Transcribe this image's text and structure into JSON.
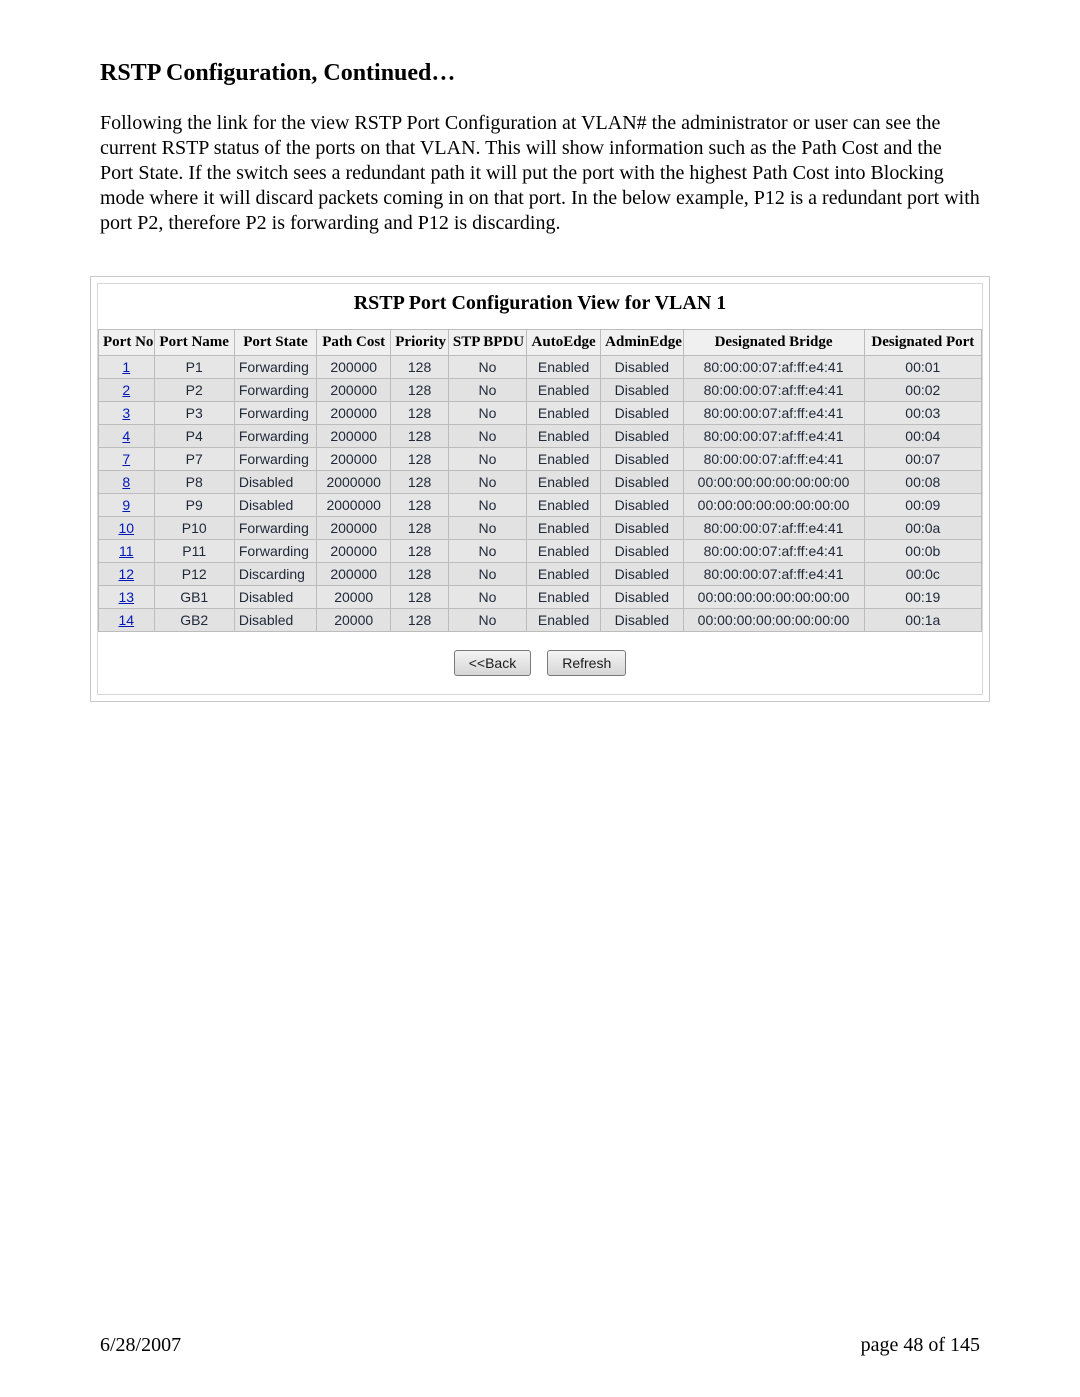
{
  "heading": "RSTP Configuration, Continued…",
  "paragraph": "Following the link for the view RSTP Port Configuration at VLAN# the administrator or user can see the current RSTP status of the ports on that VLAN.  This will show information such as the Path Cost and the Port State.  If the switch sees a redundant path it will put the port with the highest Path Cost into Blocking mode where it will discard packets coming in on that port. In the below example, P12 is a redundant port with port P2, therefore P2 is forwarding and P12 is discarding.",
  "table": {
    "caption": "RSTP Port Configuration View for VLAN 1",
    "columns": [
      "Port No",
      "Port Name",
      "Port State",
      "Path Cost",
      "Priority",
      "STP BPDU",
      "AutoEdge",
      "AdminEdge",
      "Designated Bridge",
      "Designated Port"
    ],
    "rows": [
      {
        "no": "1",
        "name": "P1",
        "state": "Forwarding",
        "cost": "200000",
        "prio": "128",
        "bpdu": "No",
        "auto": "Enabled",
        "admin": "Disabled",
        "bridge": "80:00:00:07:af:ff:e4:41",
        "dport": "00:01"
      },
      {
        "no": "2",
        "name": "P2",
        "state": "Forwarding",
        "cost": "200000",
        "prio": "128",
        "bpdu": "No",
        "auto": "Enabled",
        "admin": "Disabled",
        "bridge": "80:00:00:07:af:ff:e4:41",
        "dport": "00:02"
      },
      {
        "no": "3",
        "name": "P3",
        "state": "Forwarding",
        "cost": "200000",
        "prio": "128",
        "bpdu": "No",
        "auto": "Enabled",
        "admin": "Disabled",
        "bridge": "80:00:00:07:af:ff:e4:41",
        "dport": "00:03"
      },
      {
        "no": "4",
        "name": "P4",
        "state": "Forwarding",
        "cost": "200000",
        "prio": "128",
        "bpdu": "No",
        "auto": "Enabled",
        "admin": "Disabled",
        "bridge": "80:00:00:07:af:ff:e4:41",
        "dport": "00:04"
      },
      {
        "no": "7",
        "name": "P7",
        "state": "Forwarding",
        "cost": "200000",
        "prio": "128",
        "bpdu": "No",
        "auto": "Enabled",
        "admin": "Disabled",
        "bridge": "80:00:00:07:af:ff:e4:41",
        "dport": "00:07"
      },
      {
        "no": "8",
        "name": "P8",
        "state": "Disabled",
        "cost": "2000000",
        "prio": "128",
        "bpdu": "No",
        "auto": "Enabled",
        "admin": "Disabled",
        "bridge": "00:00:00:00:00:00:00:00",
        "dport": "00:08"
      },
      {
        "no": "9",
        "name": "P9",
        "state": "Disabled",
        "cost": "2000000",
        "prio": "128",
        "bpdu": "No",
        "auto": "Enabled",
        "admin": "Disabled",
        "bridge": "00:00:00:00:00:00:00:00",
        "dport": "00:09"
      },
      {
        "no": "10",
        "name": "P10",
        "state": "Forwarding",
        "cost": "200000",
        "prio": "128",
        "bpdu": "No",
        "auto": "Enabled",
        "admin": "Disabled",
        "bridge": "80:00:00:07:af:ff:e4:41",
        "dport": "00:0a"
      },
      {
        "no": "11",
        "name": "P11",
        "state": "Forwarding",
        "cost": "200000",
        "prio": "128",
        "bpdu": "No",
        "auto": "Enabled",
        "admin": "Disabled",
        "bridge": "80:00:00:07:af:ff:e4:41",
        "dport": "00:0b"
      },
      {
        "no": "12",
        "name": "P12",
        "state": "Discarding",
        "cost": "200000",
        "prio": "128",
        "bpdu": "No",
        "auto": "Enabled",
        "admin": "Disabled",
        "bridge": "80:00:00:07:af:ff:e4:41",
        "dport": "00:0c"
      },
      {
        "no": "13",
        "name": "GB1",
        "state": "Disabled",
        "cost": "20000",
        "prio": "128",
        "bpdu": "No",
        "auto": "Enabled",
        "admin": "Disabled",
        "bridge": "00:00:00:00:00:00:00:00",
        "dport": "00:19"
      },
      {
        "no": "14",
        "name": "GB2",
        "state": "Disabled",
        "cost": "20000",
        "prio": "128",
        "bpdu": "No",
        "auto": "Enabled",
        "admin": "Disabled",
        "bridge": "00:00:00:00:00:00:00:00",
        "dport": "00:1a"
      }
    ]
  },
  "buttons": {
    "back": "<<Back",
    "refresh": "Refresh"
  },
  "footer": {
    "date": "6/28/2007",
    "page": "page 48 of 145"
  }
}
